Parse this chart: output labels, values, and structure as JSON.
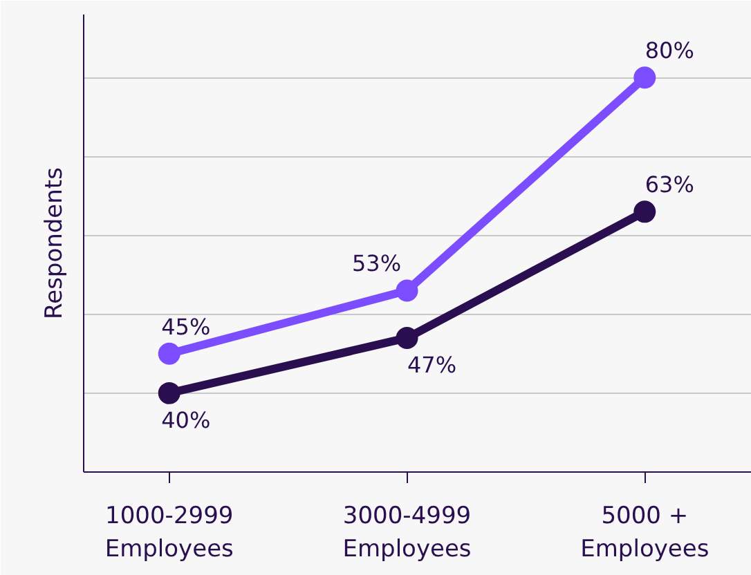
{
  "chart_data": {
    "type": "line",
    "ylabel": "Respondents",
    "categories": [
      "1000-2999 Employees",
      "3000-4999 Employees",
      "5000 + Employees"
    ],
    "series": [
      {
        "color": "#7c4dff",
        "values": [
          45,
          53,
          80
        ],
        "value_labels": [
          "45%",
          "53%",
          "80%"
        ]
      },
      {
        "color": "#2a0f50",
        "values": [
          40,
          47,
          63
        ],
        "value_labels": [
          "40%",
          "47%",
          "63%"
        ]
      }
    ],
    "grid": "y",
    "tick_labels": "x",
    "marker": "circle",
    "line_style": "solid"
  }
}
